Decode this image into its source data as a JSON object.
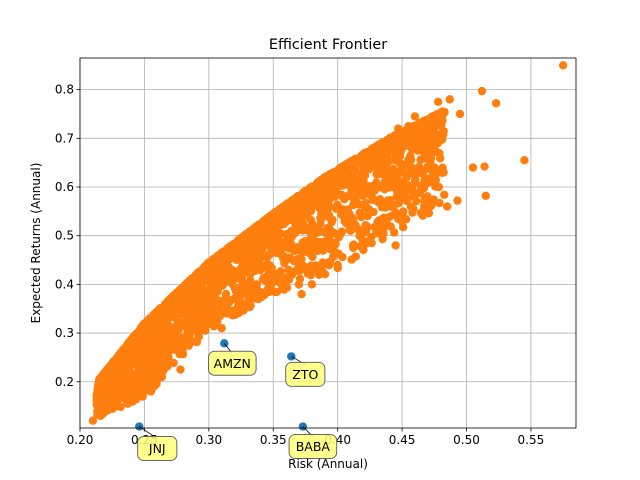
{
  "chart_data": {
    "type": "scatter",
    "title": "Efficient Frontier",
    "xlabel": "Risk (Annual)",
    "ylabel": "Expected Returns (Annual)",
    "xlim": [
      0.2,
      0.585
    ],
    "ylim": [
      0.105,
      0.865
    ],
    "xticks": [
      0.2,
      0.25,
      0.3,
      0.35,
      0.4,
      0.45,
      0.5,
      0.55
    ],
    "xtick_labels": [
      "0.20",
      "0.25",
      "0.30",
      "0.35",
      "0.40",
      "0.45",
      "0.50",
      "0.55"
    ],
    "yticks": [
      0.2,
      0.3,
      0.4,
      0.5,
      0.6,
      0.7,
      0.8
    ],
    "ytick_labels": [
      "0.2",
      "0.3",
      "0.4",
      "0.5",
      "0.6",
      "0.7",
      "0.8"
    ],
    "grid": true,
    "portfolio_color": "#ff7f0e",
    "asset_color": "#1f77b4",
    "label_box_color": "#ffff77",
    "portfolios": {
      "band_outline": [
        [
          0.21,
          0.12
        ],
        [
          0.215,
          0.205
        ],
        [
          0.25,
          0.32
        ],
        [
          0.3,
          0.445
        ],
        [
          0.35,
          0.545
        ],
        [
          0.39,
          0.62
        ],
        [
          0.44,
          0.7
        ],
        [
          0.5,
          0.78
        ],
        [
          0.575,
          0.85
        ]
      ],
      "band_lower": [
        [
          0.21,
          0.12
        ],
        [
          0.25,
          0.16
        ],
        [
          0.3,
          0.3
        ],
        [
          0.35,
          0.37
        ],
        [
          0.4,
          0.42
        ],
        [
          0.44,
          0.49
        ],
        [
          0.5,
          0.57
        ],
        [
          0.55,
          0.65
        ]
      ],
      "extra_points": [
        [
          0.21,
          0.12
        ],
        [
          0.225,
          0.185
        ],
        [
          0.228,
          0.165
        ],
        [
          0.24,
          0.165
        ],
        [
          0.245,
          0.175
        ],
        [
          0.25,
          0.18
        ],
        [
          0.255,
          0.18
        ],
        [
          0.278,
          0.225
        ],
        [
          0.31,
          0.31
        ],
        [
          0.575,
          0.85
        ],
        [
          0.512,
          0.797
        ],
        [
          0.523,
          0.772
        ],
        [
          0.487,
          0.78
        ],
        [
          0.478,
          0.775
        ],
        [
          0.495,
          0.75
        ],
        [
          0.545,
          0.655
        ],
        [
          0.514,
          0.642
        ],
        [
          0.505,
          0.64
        ],
        [
          0.515,
          0.582
        ],
        [
          0.493,
          0.572
        ],
        [
          0.485,
          0.56
        ],
        [
          0.476,
          0.625
        ],
        [
          0.472,
          0.665
        ],
        [
          0.46,
          0.745
        ],
        [
          0.455,
          0.725
        ],
        [
          0.447,
          0.72
        ],
        [
          0.44,
          0.695
        ],
        [
          0.455,
          0.63
        ],
        [
          0.45,
          0.63
        ],
        [
          0.445,
          0.48
        ],
        [
          0.43,
          0.505
        ],
        [
          0.42,
          0.505
        ],
        [
          0.41,
          0.51
        ],
        [
          0.4,
          0.44
        ],
        [
          0.38,
          0.4
        ],
        [
          0.372,
          0.38
        ]
      ]
    },
    "assets": [
      {
        "name": "AMZN",
        "x": 0.312,
        "y": 0.279
      },
      {
        "name": "ZTO",
        "x": 0.364,
        "y": 0.252
      },
      {
        "name": "JNJ",
        "x": 0.246,
        "y": 0.108
      },
      {
        "name": "BABA",
        "x": 0.373,
        "y": 0.108
      }
    ]
  }
}
